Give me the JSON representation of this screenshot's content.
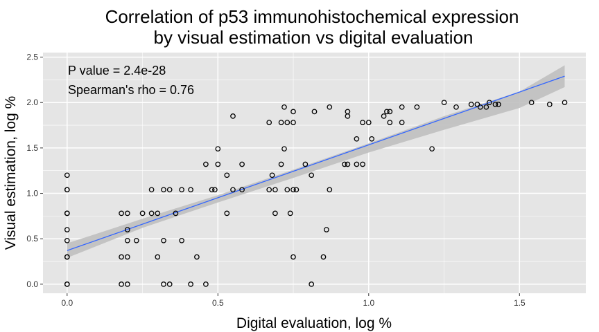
{
  "chart_data": {
    "type": "scatter",
    "title_line1": "Correlation of p53 immunohistochemical expression",
    "title_line2": "by visual estimation vs digital evaluation",
    "xlabel": "Digital evaluation, log %",
    "ylabel": "Visual estimation, log %",
    "xlim": [
      -0.08,
      1.72
    ],
    "ylim": [
      -0.1,
      2.55
    ],
    "x_ticks": [
      0.0,
      0.5,
      1.0,
      1.5
    ],
    "x_tick_labels": [
      "0.0",
      "0.5",
      "1.0",
      "1.5"
    ],
    "y_ticks": [
      0.0,
      0.5,
      1.0,
      1.5,
      2.0,
      2.5
    ],
    "y_tick_labels": [
      "0.0",
      "0.5",
      "1.0",
      "1.5",
      "2.0",
      "2.5"
    ],
    "grid": true,
    "annotations": [
      "P value = 2.4e-28",
      "Spearman's rho = 0.76"
    ],
    "fit_line": {
      "x": [
        0.0,
        1.65
      ],
      "y": [
        0.37,
        2.29
      ],
      "color": "#3366ff"
    },
    "confidence_band": {
      "x": [
        0.0,
        0.25,
        0.5,
        0.75,
        1.0,
        1.25,
        1.5,
        1.65
      ],
      "lower": [
        0.29,
        0.62,
        0.9,
        1.17,
        1.45,
        1.7,
        1.94,
        2.17
      ],
      "upper": [
        0.45,
        0.72,
        0.98,
        1.26,
        1.55,
        1.85,
        2.12,
        2.41
      ]
    },
    "colors": {
      "panel": "#e5e5e5",
      "grid": "#ffffff",
      "band": "#bfbfbf",
      "point": "#000000"
    },
    "points": [
      [
        0.0,
        0.0
      ],
      [
        0.0,
        0.0
      ],
      [
        0.0,
        0.3
      ],
      [
        0.0,
        0.3
      ],
      [
        0.0,
        0.48
      ],
      [
        0.0,
        0.6
      ],
      [
        0.0,
        0.78
      ],
      [
        0.0,
        0.78
      ],
      [
        0.0,
        1.04
      ],
      [
        0.0,
        1.04
      ],
      [
        0.0,
        1.2
      ],
      [
        0.18,
        0.0
      ],
      [
        0.18,
        0.3
      ],
      [
        0.18,
        0.78
      ],
      [
        0.2,
        0.0
      ],
      [
        0.2,
        0.3
      ],
      [
        0.2,
        0.48
      ],
      [
        0.2,
        0.6
      ],
      [
        0.2,
        0.78
      ],
      [
        0.23,
        0.48
      ],
      [
        0.25,
        0.78
      ],
      [
        0.28,
        0.78
      ],
      [
        0.28,
        1.04
      ],
      [
        0.3,
        0.3
      ],
      [
        0.3,
        0.78
      ],
      [
        0.32,
        0.0
      ],
      [
        0.32,
        0.48
      ],
      [
        0.32,
        1.04
      ],
      [
        0.34,
        0.0
      ],
      [
        0.34,
        1.04
      ],
      [
        0.36,
        0.78
      ],
      [
        0.38,
        1.04
      ],
      [
        0.38,
        0.48
      ],
      [
        0.41,
        0.0
      ],
      [
        0.41,
        1.04
      ],
      [
        0.43,
        0.3
      ],
      [
        0.46,
        0.0
      ],
      [
        0.46,
        1.32
      ],
      [
        0.48,
        1.04
      ],
      [
        0.49,
        1.04
      ],
      [
        0.5,
        1.32
      ],
      [
        0.5,
        1.49
      ],
      [
        0.53,
        0.78
      ],
      [
        0.53,
        1.2
      ],
      [
        0.55,
        1.04
      ],
      [
        0.55,
        1.85
      ],
      [
        0.58,
        1.04
      ],
      [
        0.58,
        1.32
      ],
      [
        0.67,
        1.04
      ],
      [
        0.67,
        1.78
      ],
      [
        0.68,
        1.2
      ],
      [
        0.69,
        1.04
      ],
      [
        0.69,
        0.78
      ],
      [
        0.71,
        1.32
      ],
      [
        0.71,
        1.78
      ],
      [
        0.72,
        1.49
      ],
      [
        0.72,
        1.95
      ],
      [
        0.73,
        1.78
      ],
      [
        0.73,
        1.04
      ],
      [
        0.74,
        0.78
      ],
      [
        0.75,
        1.78
      ],
      [
        0.75,
        1.9
      ],
      [
        0.75,
        1.04
      ],
      [
        0.75,
        0.3
      ],
      [
        0.76,
        1.04
      ],
      [
        0.79,
        1.32
      ],
      [
        0.81,
        0.0
      ],
      [
        0.81,
        1.2
      ],
      [
        0.82,
        1.9
      ],
      [
        0.85,
        0.3
      ],
      [
        0.86,
        0.6
      ],
      [
        0.87,
        1.04
      ],
      [
        0.87,
        1.95
      ],
      [
        0.92,
        1.32
      ],
      [
        0.93,
        1.32
      ],
      [
        0.93,
        1.85
      ],
      [
        0.93,
        1.9
      ],
      [
        0.96,
        1.32
      ],
      [
        0.96,
        1.6
      ],
      [
        0.98,
        1.32
      ],
      [
        0.98,
        1.78
      ],
      [
        1.0,
        1.78
      ],
      [
        1.01,
        1.6
      ],
      [
        1.05,
        1.85
      ],
      [
        1.06,
        1.9
      ],
      [
        1.07,
        1.78
      ],
      [
        1.07,
        1.9
      ],
      [
        1.11,
        1.78
      ],
      [
        1.11,
        1.95
      ],
      [
        1.16,
        1.95
      ],
      [
        1.21,
        1.49
      ],
      [
        1.25,
        2.0
      ],
      [
        1.29,
        1.95
      ],
      [
        1.34,
        1.98
      ],
      [
        1.36,
        1.98
      ],
      [
        1.37,
        1.95
      ],
      [
        1.39,
        1.95
      ],
      [
        1.4,
        2.0
      ],
      [
        1.42,
        1.98
      ],
      [
        1.43,
        1.98
      ],
      [
        1.54,
        2.0
      ],
      [
        1.6,
        1.98
      ],
      [
        1.65,
        2.0
      ]
    ]
  }
}
